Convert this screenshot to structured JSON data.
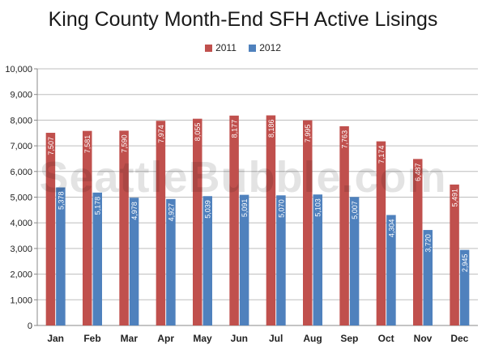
{
  "chart_data": {
    "type": "bar",
    "title": "King County Month-End SFH Active Lisings",
    "categories": [
      "Jan",
      "Feb",
      "Mar",
      "Apr",
      "May",
      "Jun",
      "Jul",
      "Aug",
      "Sep",
      "Oct",
      "Nov",
      "Dec"
    ],
    "series": [
      {
        "name": "2011",
        "color": "#c0504d",
        "values": [
          7507,
          7581,
          7590,
          7974,
          8055,
          8177,
          8186,
          7995,
          7763,
          7174,
          6487,
          5491
        ]
      },
      {
        "name": "2012",
        "color": "#4f81bd",
        "values": [
          5378,
          5178,
          4978,
          4927,
          5039,
          5091,
          5070,
          5103,
          5007,
          4304,
          3720,
          2945
        ]
      }
    ],
    "ylim": [
      0,
      10000
    ],
    "yticks": [
      "0",
      "1,000",
      "2,000",
      "3,000",
      "4,000",
      "5,000",
      "6,000",
      "7,000",
      "8,000",
      "9,000",
      "10,000"
    ],
    "data_labels": [
      [
        "7,507",
        "7,581",
        "7,590",
        "7,974",
        "8,055",
        "8,177",
        "8,186",
        "7,995",
        "7,763",
        "7,174",
        "6,487",
        "5,491"
      ],
      [
        "5,378",
        "5,178",
        "4,978",
        "4,927",
        "5,039",
        "5,091",
        "5,070",
        "5,103",
        "5,007",
        "4,304",
        "3,720",
        "2,945"
      ]
    ],
    "grid": true,
    "legend_position": "top-center",
    "watermark": "SeattleBubble.com"
  }
}
